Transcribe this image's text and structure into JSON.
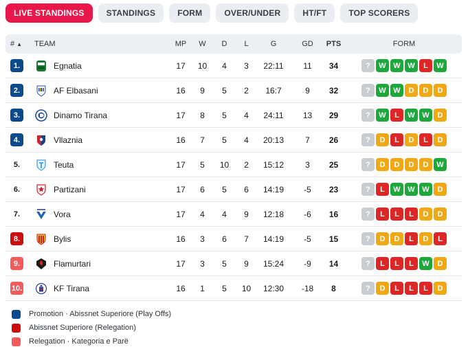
{
  "tabs": [
    {
      "label": "LIVE STANDINGS",
      "active": true
    },
    {
      "label": "STANDINGS",
      "active": false
    },
    {
      "label": "FORM",
      "active": false
    },
    {
      "label": "OVER/UNDER",
      "active": false
    },
    {
      "label": "HT/FT",
      "active": false
    },
    {
      "label": "TOP SCORERS",
      "active": false
    }
  ],
  "header": {
    "rank": "#",
    "team": "TEAM",
    "mp": "MP",
    "w": "W",
    "d": "D",
    "l": "L",
    "g": "G",
    "gd": "GD",
    "pts": "PTS",
    "form": "FORM",
    "sort_icon": "▲"
  },
  "rows": [
    {
      "rank": "1.",
      "zone": "promo",
      "team": "Egnatia",
      "logo": "egnatia-logo",
      "mp": "17",
      "w": "10",
      "d": "4",
      "l": "3",
      "g": "22:11",
      "gd": "11",
      "pts": "34",
      "form": [
        "?",
        "W",
        "W",
        "W",
        "L",
        "W"
      ]
    },
    {
      "rank": "2.",
      "zone": "promo",
      "team": "AF Elbasani",
      "logo": "elbasani-logo",
      "mp": "16",
      "w": "9",
      "d": "5",
      "l": "2",
      "g": "16:7",
      "gd": "9",
      "pts": "32",
      "form": [
        "?",
        "W",
        "W",
        "D",
        "D",
        "D"
      ]
    },
    {
      "rank": "3.",
      "zone": "promo",
      "team": "Dinamo Tirana",
      "logo": "dinamo-logo",
      "mp": "17",
      "w": "8",
      "d": "5",
      "l": "4",
      "g": "24:11",
      "gd": "13",
      "pts": "29",
      "form": [
        "?",
        "W",
        "L",
        "W",
        "W",
        "D"
      ]
    },
    {
      "rank": "4.",
      "zone": "promo",
      "team": "Vllaznia",
      "logo": "vllaznia-logo",
      "mp": "16",
      "w": "7",
      "d": "5",
      "l": "4",
      "g": "20:13",
      "gd": "7",
      "pts": "26",
      "form": [
        "?",
        "D",
        "L",
        "D",
        "L",
        "D"
      ]
    },
    {
      "rank": "5.",
      "zone": "none",
      "team": "Teuta",
      "logo": "teuta-logo",
      "mp": "17",
      "w": "5",
      "d": "10",
      "l": "2",
      "g": "15:12",
      "gd": "3",
      "pts": "25",
      "form": [
        "?",
        "D",
        "D",
        "D",
        "D",
        "W"
      ]
    },
    {
      "rank": "6.",
      "zone": "none",
      "team": "Partizani",
      "logo": "partizani-logo",
      "mp": "17",
      "w": "6",
      "d": "5",
      "l": "6",
      "g": "14:19",
      "gd": "-5",
      "pts": "23",
      "form": [
        "?",
        "L",
        "W",
        "W",
        "W",
        "D"
      ]
    },
    {
      "rank": "7.",
      "zone": "none",
      "team": "Vora",
      "logo": "vora-logo",
      "mp": "17",
      "w": "4",
      "d": "4",
      "l": "9",
      "g": "12:18",
      "gd": "-6",
      "pts": "16",
      "form": [
        "?",
        "L",
        "L",
        "L",
        "D",
        "D"
      ]
    },
    {
      "rank": "8.",
      "zone": "relega",
      "team": "Bylis",
      "logo": "bylis-logo",
      "mp": "16",
      "w": "3",
      "d": "6",
      "l": "7",
      "g": "14:19",
      "gd": "-5",
      "pts": "15",
      "form": [
        "?",
        "D",
        "D",
        "L",
        "D",
        "L"
      ]
    },
    {
      "rank": "9.",
      "zone": "releg",
      "team": "Flamurtari",
      "logo": "flamurtari-logo",
      "mp": "17",
      "w": "3",
      "d": "5",
      "l": "9",
      "g": "15:24",
      "gd": "-9",
      "pts": "14",
      "form": [
        "?",
        "L",
        "L",
        "L",
        "W",
        "D"
      ]
    },
    {
      "rank": "10.",
      "zone": "releg",
      "team": "KF Tirana",
      "logo": "tirana-logo",
      "mp": "16",
      "w": "1",
      "d": "5",
      "l": "10",
      "g": "12:30",
      "gd": "-18",
      "pts": "8",
      "form": [
        "?",
        "D",
        "L",
        "L",
        "L",
        "D"
      ]
    }
  ],
  "legend": [
    {
      "label": "Promotion · Abissnet Superiore (Play Offs)",
      "color": "#0b4a8c"
    },
    {
      "label": "Abissnet Superiore (Relegation)",
      "color": "#cc0d0d"
    },
    {
      "label": "Relegation · Kategoria e Parë",
      "color": "#f25b5b"
    }
  ]
}
